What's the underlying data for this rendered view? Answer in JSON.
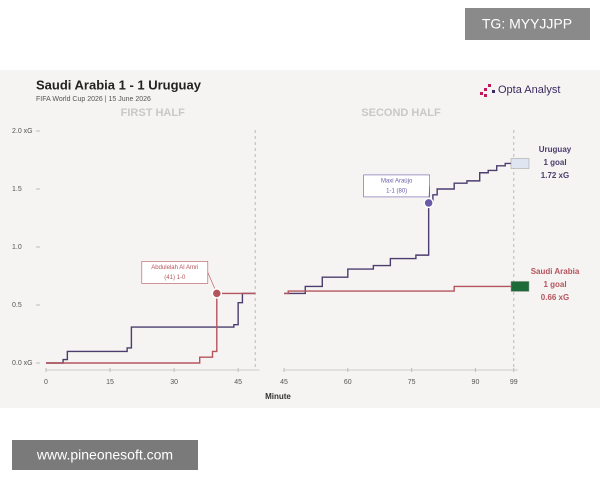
{
  "header": {
    "title": "Saudi Arabia 1 - 1 Uruguay",
    "subtitle": "FIFA World Cup 2026 | 15 June 2026",
    "brand": "Opta Analyst"
  },
  "watermarks": [
    "TG: MYYJJPP",
    "www.pineonesoft.com"
  ],
  "xlabel": "Minute",
  "chart_data": [
    {
      "type": "step",
      "title": "FIRST HALF",
      "xlim": [
        0,
        50
      ],
      "xticks": [
        0,
        15,
        30,
        45
      ],
      "ylim": [
        0,
        2
      ],
      "yticks": [
        {
          "value": 0,
          "label": "0.0 xG"
        },
        0.5,
        {
          "value": 1,
          "label": "1.0"
        },
        1.5,
        {
          "value": 2,
          "label": "2.0 xG"
        }
      ],
      "series": [
        {
          "color": "#4b3d6e",
          "x": [
            0,
            4,
            5,
            19,
            20,
            44,
            45,
            46,
            49
          ],
          "values": [
            0,
            0.03,
            0.1,
            0.13,
            0.31,
            0.33,
            0.52,
            0.6,
            0.6
          ]
        },
        {
          "color": "#b5545c",
          "x": [
            0,
            36,
            39,
            40,
            49
          ],
          "values": [
            0,
            0.05,
            0.1,
            0.6,
            0.6
          ]
        }
      ],
      "annotations": [
        {
          "text": [
            "Abdulelah Al Amri",
            "(41) 1-0"
          ],
          "x": 40,
          "y": 0.6,
          "color": "#b5545c"
        }
      ]
    },
    {
      "type": "step",
      "title": "SECOND HALF",
      "xlim": [
        45,
        100
      ],
      "xticks": [
        45,
        60,
        75,
        90,
        99
      ],
      "series": [
        {
          "name": "Uruguay",
          "notes": [
            "1 goal",
            "1.72 xG"
          ],
          "color": "#4b3d6e",
          "x": [
            45,
            50,
            54,
            60,
            66,
            70,
            76,
            79,
            80,
            81,
            85,
            88,
            91,
            93,
            95,
            97,
            99
          ],
          "values": [
            0.6,
            0.66,
            0.74,
            0.81,
            0.84,
            0.9,
            0.93,
            1.38,
            1.45,
            1.5,
            1.55,
            1.57,
            1.64,
            1.66,
            1.7,
            1.72,
            1.72
          ]
        },
        {
          "name": "Saudi Arabia",
          "notes": [
            "1 goal",
            "0.66 xG"
          ],
          "color": "#b5545c",
          "x": [
            45,
            46,
            85,
            99
          ],
          "values": [
            0.6,
            0.62,
            0.66,
            0.66
          ]
        }
      ],
      "annotations": [
        {
          "text": [
            "Maxi Araújo",
            "1-1 (80)"
          ],
          "x": 79,
          "y": 1.38,
          "color": "#6a5aa8"
        }
      ]
    }
  ]
}
